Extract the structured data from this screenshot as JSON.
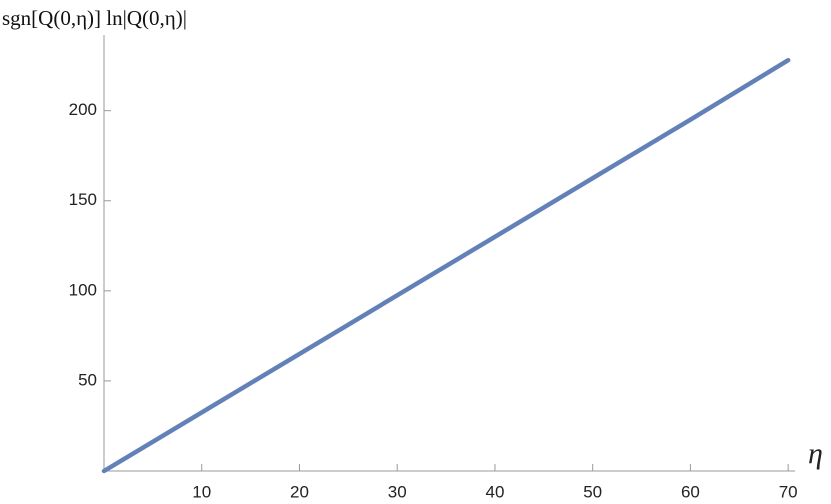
{
  "chart_data": {
    "type": "line",
    "y_label": "sgn[Q(0,η)] ln|Q(0,η)|",
    "x_label": "η",
    "x": [
      0,
      10,
      20,
      30,
      40,
      50,
      60,
      70
    ],
    "series": [
      {
        "name": "sgn[Q(0,η)] ln|Q(0,η)|",
        "color": "#6381b9",
        "values": [
          0,
          32.5,
          65,
          97.5,
          130,
          162.5,
          195,
          228
        ]
      }
    ],
    "xlim": [
      0,
      70.7
    ],
    "ylim": [
      0,
      242
    ],
    "xticks": [
      10,
      20,
      30,
      40,
      50,
      60,
      70
    ],
    "yticks": [
      50,
      100,
      150,
      200
    ],
    "grid": false
  }
}
